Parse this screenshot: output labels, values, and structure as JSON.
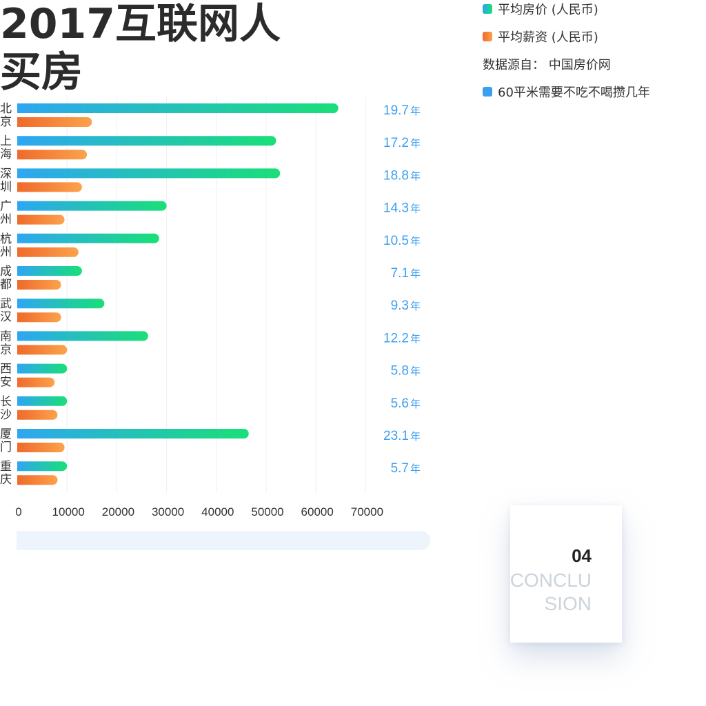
{
  "title": "2017互联网人\n买房",
  "legend": {
    "house_price": "平均房价 (人民币)",
    "salary": "平均薪资 (人民币)",
    "source": "数据源自： 中国房价网",
    "years": "60平米需要不吃不喝攒几年"
  },
  "colors": {
    "price_start": "#2ea6f2",
    "price_end": "#19df78",
    "salary_start": "#ef6a2b",
    "salary_end": "#fca24c",
    "years_text": "#3a9ff2"
  },
  "chart_data": {
    "type": "bar",
    "orientation": "horizontal",
    "categories": [
      "北京",
      "上海",
      "深圳",
      "广州",
      "杭州",
      "成都",
      "武汉",
      "南京",
      "西安",
      "长沙",
      "厦门",
      "重庆"
    ],
    "series": [
      {
        "name": "平均房价 (人民币)",
        "values": [
          64500,
          52000,
          52800,
          30000,
          28500,
          13000,
          17500,
          26300,
          10000,
          10000,
          46500,
          10000
        ]
      },
      {
        "name": "平均薪资 (人民币)",
        "values": [
          15000,
          14000,
          13000,
          9500,
          12300,
          8800,
          8800,
          10000,
          7500,
          8100,
          9500,
          8100
        ]
      }
    ],
    "annotations": [
      "19.7",
      "17.2",
      "18.8",
      "14.3",
      "10.5",
      "7.1",
      "9.3",
      "12.2",
      "5.8",
      "5.6",
      "23.1",
      "5.7"
    ],
    "annotation_unit": "年",
    "xlim": [
      0,
      70000
    ],
    "xticks": [
      0,
      10000,
      20000,
      30000,
      40000,
      50000,
      60000,
      70000
    ],
    "grid": true
  },
  "card": {
    "number": "04",
    "word": "CONCLU\nSION"
  }
}
